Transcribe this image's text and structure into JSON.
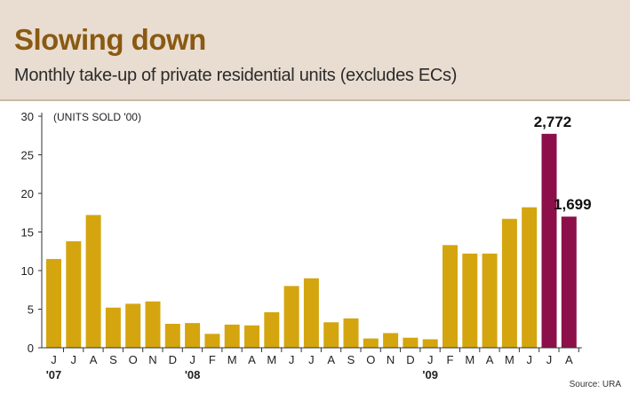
{
  "header": {
    "title": "Slowing down",
    "subtitle": "Monthly take-up of private residential units (excludes ECs)"
  },
  "source": "Source: URA",
  "colors": {
    "bar": "#d4a50e",
    "highlight": "#8c0f4a",
    "header_bg": "#e9ddd1",
    "title": "#8a5a12"
  },
  "chart_data": {
    "type": "bar",
    "title": "Slowing down",
    "subtitle": "Monthly take-up of private residential units (excludes ECs)",
    "ylabel": "(UNITS SOLD '00)",
    "xlabel": "",
    "ylim": [
      0,
      30
    ],
    "yticks": [
      0,
      5,
      10,
      15,
      20,
      25,
      30
    ],
    "grid": false,
    "categories": [
      "J",
      "J",
      "A",
      "S",
      "O",
      "N",
      "D",
      "J",
      "F",
      "M",
      "A",
      "M",
      "J",
      "J",
      "A",
      "S",
      "O",
      "N",
      "D",
      "J",
      "F",
      "M",
      "A",
      "M",
      "J",
      "J",
      "A"
    ],
    "year_labels": [
      {
        "index": 0,
        "label": "'07"
      },
      {
        "index": 7,
        "label": "'08"
      },
      {
        "index": 19,
        "label": "'09"
      }
    ],
    "values": [
      11.5,
      13.8,
      17.2,
      5.2,
      5.7,
      6.0,
      3.1,
      3.2,
      1.8,
      3.0,
      2.9,
      4.6,
      8.0,
      9.0,
      3.3,
      3.8,
      1.2,
      1.9,
      1.3,
      1.1,
      13.3,
      12.2,
      12.2,
      16.7,
      18.2,
      27.72,
      16.99
    ],
    "highlighted": [
      25,
      26
    ],
    "data_labels": [
      {
        "index": 25,
        "label": "2,772"
      },
      {
        "index": 26,
        "label": "1,699"
      }
    ]
  }
}
